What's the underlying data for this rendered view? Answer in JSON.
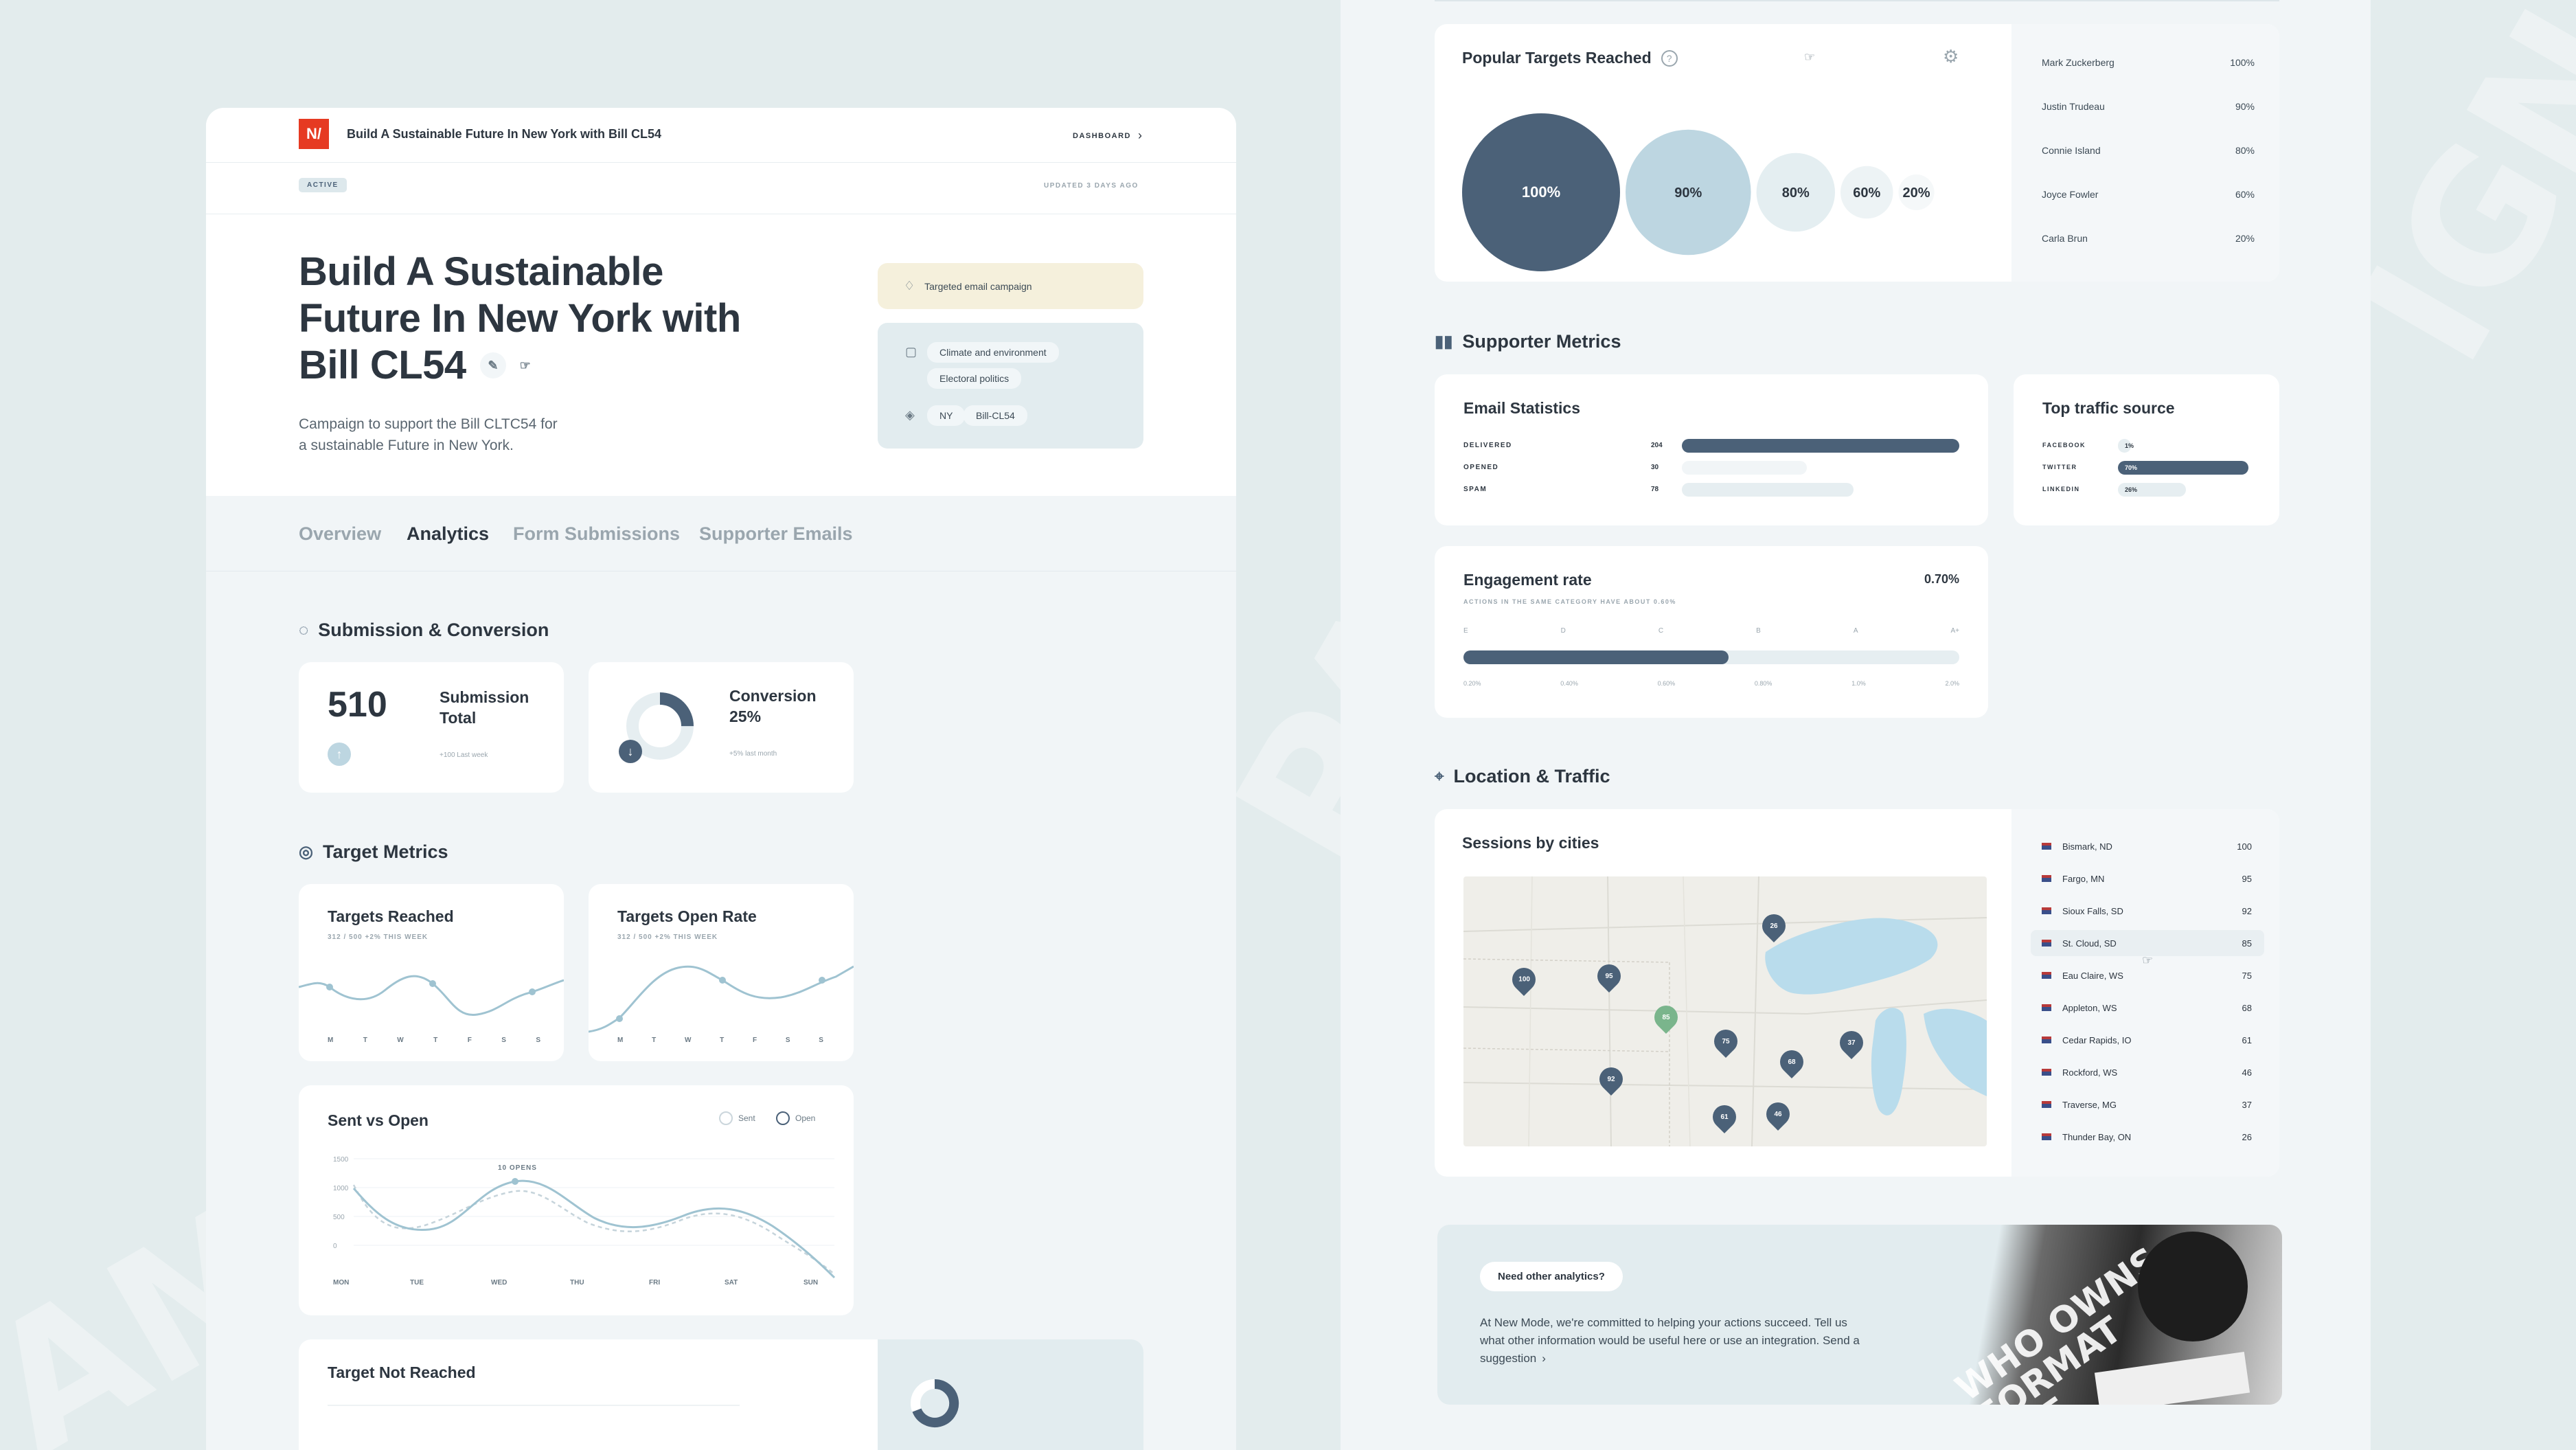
{
  "header": {
    "logo_text": "N/",
    "title": "Build A Sustainable Future In New York with Bill CL54",
    "dashboard_link": "DASHBOARD",
    "status_badge": "ACTIVE",
    "updated": "UPDATED 3 DAYS AGO"
  },
  "hero": {
    "title_line1": "Build A Sustainable",
    "title_line2": "Future In New York with",
    "title_line3": "Bill CL54",
    "description_line1": "Campaign to support the Bill CLTC54 for",
    "description_line2": "a sustainable Future in New York."
  },
  "campaign": {
    "type": "Targeted email campaign",
    "topics": [
      "Climate and environment",
      "Electoral politics"
    ],
    "tags": [
      "NY",
      "Bill-CL54"
    ]
  },
  "tabs": [
    "Overview",
    "Analytics",
    "Form Submissions",
    "Supporter Emails"
  ],
  "active_tab": "Analytics",
  "submission": {
    "section_title": "Submission & Conversion",
    "total_value": "510",
    "total_label_line1": "Submission",
    "total_label_line2": "Total",
    "total_sub": "+100 Last week",
    "conversion_label": "Conversion",
    "conversion_value": "25%",
    "conversion_fraction": 0.25,
    "conversion_sub": "+5% last month"
  },
  "target_metrics": {
    "section_title": "Target Metrics",
    "reached_title": "Targets Reached",
    "reached_sub": "312 / 500 +2% THIS WEEK",
    "open_title": "Targets Open Rate",
    "open_sub": "312 / 500 +2% THIS WEEK",
    "days": [
      "M",
      "T",
      "W",
      "T",
      "F",
      "S",
      "S"
    ]
  },
  "sent_vs_open": {
    "title": "Sent vs Open",
    "legend_sent": "Sent",
    "legend_open": "Open",
    "y_ticks": [
      "1500",
      "1000",
      "500",
      "0"
    ],
    "x_labels": [
      "MON",
      "TUE",
      "WED",
      "THU",
      "FRI",
      "SAT",
      "SUN"
    ],
    "annotation": "10 OPENS"
  },
  "target_not_reached": {
    "title": "Target Not Reached"
  },
  "popular_targets": {
    "title": "Popular Targets Reached",
    "bubbles": [
      {
        "label": "100%",
        "value": 100,
        "color": "#4b6178",
        "text_color": "#ffffff"
      },
      {
        "label": "90%",
        "value": 90,
        "color": "#bdd6e1",
        "text_color": "#2d3640"
      },
      {
        "label": "80%",
        "value": 80,
        "color": "#e4eef1",
        "text_color": "#2d3640"
      },
      {
        "label": "60%",
        "value": 60,
        "color": "#edf3f5",
        "text_color": "#2d3640"
      },
      {
        "label": "20%",
        "value": 20,
        "color": "#f5f8f9",
        "text_color": "#2d3640"
      }
    ],
    "list": [
      {
        "name": "Mark Zuckerberg",
        "value": "100%"
      },
      {
        "name": "Justin Trudeau",
        "value": "90%"
      },
      {
        "name": "Connie Island",
        "value": "80%"
      },
      {
        "name": "Joyce Fowler",
        "value": "60%"
      },
      {
        "name": "Carla Brun",
        "value": "20%"
      }
    ]
  },
  "supporter_metrics": {
    "section_title": "Supporter Metrics",
    "email_title": "Email Statistics",
    "email_rows": [
      {
        "label": "DELIVERED",
        "value": "204",
        "fraction": 1.0
      },
      {
        "label": "OPENED",
        "value": "30",
        "fraction": 0.45
      },
      {
        "label": "SPAM",
        "value": "78",
        "fraction": 0.62
      }
    ],
    "traffic_title": "Top traffic source",
    "traffic_rows": [
      {
        "label": "FACEBOOK",
        "value": "1%",
        "fraction": 0.1
      },
      {
        "label": "TWITTER",
        "value": "70%",
        "fraction": 1.0
      },
      {
        "label": "LINKEDIN",
        "value": "26%",
        "fraction": 0.52
      }
    ],
    "engagement_title": "Engagement rate",
    "engagement_value": "0.70%",
    "engagement_fraction": 0.535,
    "engagement_sub": "ACTIONS IN THE SAME CATEGORY HAVE ABOUT 0.60%",
    "grades": [
      "E",
      "D",
      "C",
      "B",
      "A",
      "A+"
    ],
    "scale": [
      "0.20%",
      "0.40%",
      "0.60%",
      "0.80%",
      "1.0%",
      "2.0%"
    ]
  },
  "location": {
    "section_title": "Location & Traffic",
    "sessions_title": "Sessions by cities",
    "cities": [
      {
        "name": "Bismark, ND",
        "value": "100"
      },
      {
        "name": "Fargo, MN",
        "value": "95"
      },
      {
        "name": "Sioux Falls, SD",
        "value": "92"
      },
      {
        "name": "St. Cloud, SD",
        "value": "85"
      },
      {
        "name": "Eau Claire, WS",
        "value": "75"
      },
      {
        "name": "Appleton, WS",
        "value": "68"
      },
      {
        "name": "Cedar Rapids, IO",
        "value": "61"
      },
      {
        "name": "Rockford, WS",
        "value": "46"
      },
      {
        "name": "Traverse, MG",
        "value": "37"
      },
      {
        "name": "Thunder Bay, ON",
        "value": "26"
      }
    ],
    "map_pins": [
      "26",
      "100",
      "95",
      "85",
      "75",
      "68",
      "37",
      "92",
      "61",
      "46"
    ]
  },
  "cta": {
    "button": "Need other analytics?",
    "text_line1": "At New Mode, we're committed to helping your actions succeed. Tell us",
    "text_line2": "what other information would be useful here or use an integration. Send a",
    "text_line3": "suggestion",
    "photo_text_line1": "WHO OWNS",
    "photo_text_line2": "FORMAT",
    "photo_text_line3": "THE"
  },
  "colors": {
    "accent": "#4b6178",
    "brand": "#e63a22",
    "light_blue": "#bdd6e1",
    "green_pin": "#7ab58c"
  }
}
